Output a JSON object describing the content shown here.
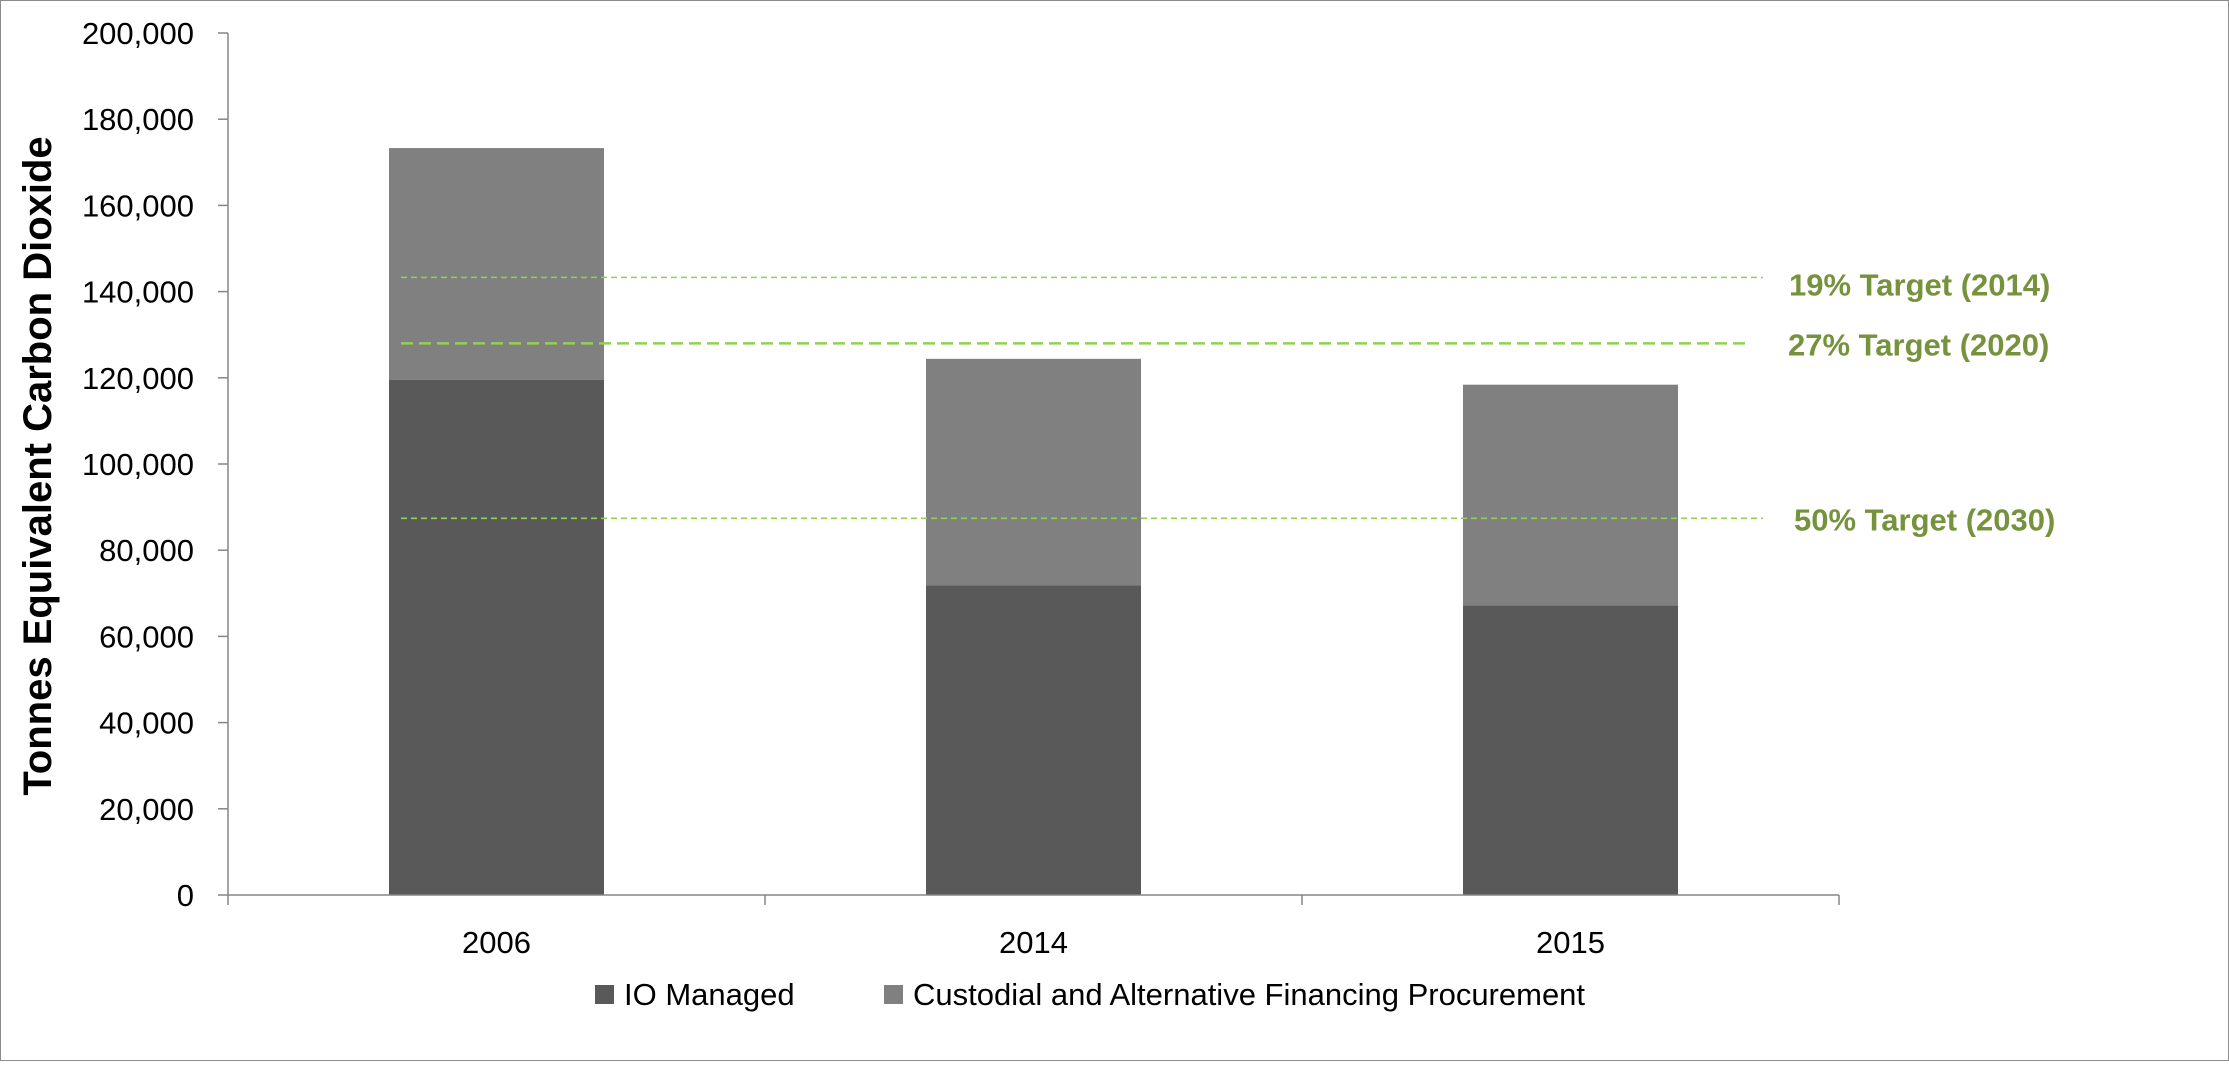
{
  "chart_data": {
    "type": "bar",
    "stacked": true,
    "title": "",
    "xlabel": "",
    "ylabel": "Tonnes Equivalent Carbon Dioxide",
    "ylim": [
      0,
      200000
    ],
    "yticks": [
      0,
      20000,
      40000,
      60000,
      80000,
      100000,
      120000,
      140000,
      160000,
      180000,
      200000
    ],
    "ytick_labels": [
      "0",
      "20,000",
      "40,000",
      "60,000",
      "80,000",
      "100,000",
      "120,000",
      "140,000",
      "160,000",
      "180,000",
      "200,000"
    ],
    "categories": [
      "2006",
      "2014",
      "2015"
    ],
    "series": [
      {
        "name": "IO Managed",
        "values": [
          119500,
          71800,
          67200
        ],
        "color": "#595959"
      },
      {
        "name": "Custodial and Alternative Financing Procurement",
        "values": [
          53800,
          52600,
          51200
        ],
        "color": "#808080"
      }
    ],
    "reference_lines": [
      {
        "label": "19% Target (2014)",
        "value": 143300
      },
      {
        "label": "27% Target (2020)",
        "value": 128000
      },
      {
        "label": "50% Target (2030)",
        "value": 87400
      }
    ],
    "reference_color": "#92d050",
    "reference_label_color": "#76923c",
    "grid": false,
    "legend_position": "bottom"
  }
}
